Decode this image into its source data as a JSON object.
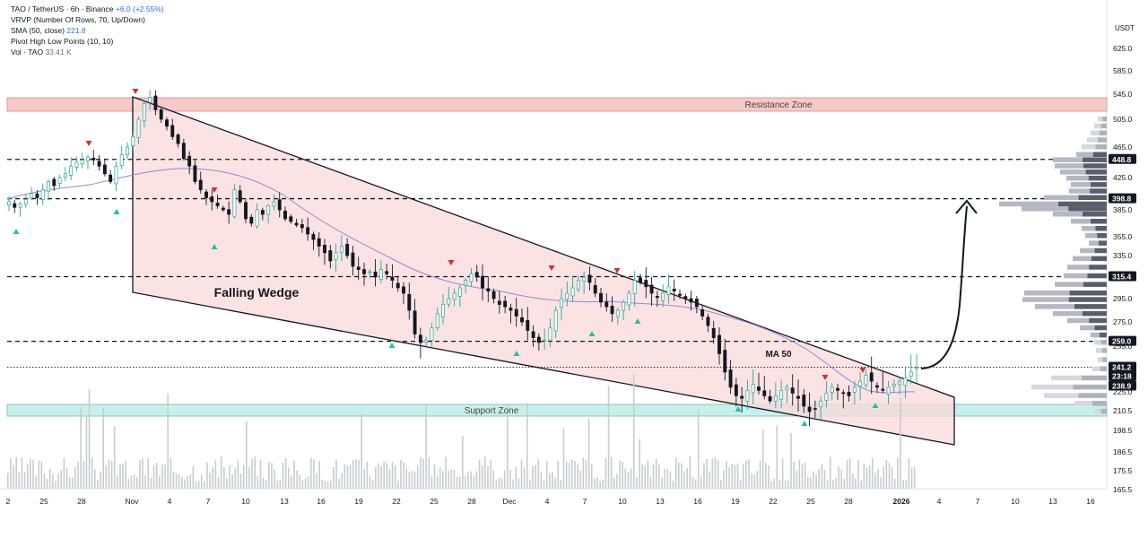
{
  "header": {
    "line1": {
      "symbol": "TAO / TetherUS · 6h · Binance",
      "change": "+6.0 (+2.55%)"
    },
    "line2": "VRVP (Number Of Rows, 70, Up/Down)",
    "line3": {
      "label": "SMA (50, close)",
      "value": "221.8"
    },
    "line4": "Pivot High Low Points (10, 10)",
    "line5": {
      "label": "Vol · TAO",
      "value": "33.41 K"
    }
  },
  "currency": "USDT",
  "colors": {
    "up": "#26a69a",
    "down": "#131722",
    "resistance_fill": "#f7c9c9",
    "support_fill": "#c8f0ea",
    "wedge_fill": "#fbd9d9",
    "sma": "#8a8dd6",
    "marker_up": "#2bbfa0",
    "marker_down": "#d32f2f"
  },
  "chart_data": {
    "type": "candlestick",
    "y_ticks": [
      "625.0",
      "585.0",
      "545.0",
      "505.0",
      "465.0",
      "425.0",
      "385.0",
      "355.0",
      "335.0",
      "295.0",
      "275.0",
      "255.0",
      "225.0",
      "210.5",
      "198.5",
      "186.5",
      "175.5",
      "165.5"
    ],
    "x_ticks": [
      "2",
      "25",
      "28",
      "Nov",
      "4",
      "7",
      "10",
      "13",
      "16",
      "19",
      "22",
      "25",
      "28",
      "Dec",
      "4",
      "7",
      "10",
      "13",
      "16",
      "19",
      "22",
      "25",
      "28",
      "2026",
      "4",
      "7",
      "10",
      "13",
      "16"
    ],
    "price_labels": [
      "448.8",
      "398.8",
      "315.4",
      "259.0",
      "241.2",
      "23:18",
      "238.9"
    ],
    "levels": [
      448.8,
      398.8,
      315.4,
      259.0
    ],
    "current_price": 241.2,
    "resistance_zone": {
      "label": "Resistance Zone",
      "low": 522,
      "high": 545
    },
    "support_zone": {
      "label": "Support Zone",
      "low": 207,
      "high": 218
    },
    "wedge": {
      "label": "Falling Wedge",
      "upper_start": {
        "x": "Nov 1",
        "y": 545
      },
      "upper_end": {
        "x": "Jan 5",
        "y": 222
      },
      "lower_start": {
        "x": "Nov 1",
        "y": 302
      },
      "lower_end": {
        "x": "Jan 5",
        "y": 192
      }
    },
    "ma_label": "MA 50",
    "arrow_target": 398.8,
    "candle_close_path": [
      395,
      388,
      392,
      398,
      405,
      400,
      410,
      420,
      415,
      425,
      430,
      440,
      445,
      448,
      452,
      448,
      440,
      430,
      420,
      440,
      455,
      465,
      480,
      505,
      530,
      540,
      520,
      505,
      495,
      480,
      470,
      450,
      440,
      420,
      410,
      400,
      395,
      390,
      385,
      380,
      410,
      395,
      375,
      370,
      385,
      380,
      390,
      395,
      385,
      375,
      372,
      368,
      365,
      358,
      352,
      345,
      338,
      330,
      338,
      345,
      335,
      325,
      322,
      318,
      320,
      315,
      322,
      318,
      312,
      305,
      300,
      285,
      265,
      258,
      260,
      270,
      282,
      290,
      295,
      300,
      305,
      312,
      318,
      315,
      305,
      302,
      295,
      290,
      288,
      285,
      280,
      275,
      268,
      262,
      258,
      260,
      270,
      285,
      295,
      300,
      305,
      312,
      315,
      310,
      300,
      292,
      288,
      282,
      285,
      292,
      300,
      312,
      310,
      306,
      300,
      296,
      300,
      306,
      302,
      298,
      295,
      292,
      288,
      280,
      272,
      262,
      250,
      238,
      228,
      222,
      220,
      226,
      230,
      226,
      222,
      218,
      222,
      226,
      228,
      224,
      220,
      214,
      210,
      212,
      218,
      224,
      228,
      226,
      224,
      222,
      228,
      232,
      236,
      232,
      228,
      226,
      228,
      230,
      232,
      234,
      238,
      241
    ]
  }
}
